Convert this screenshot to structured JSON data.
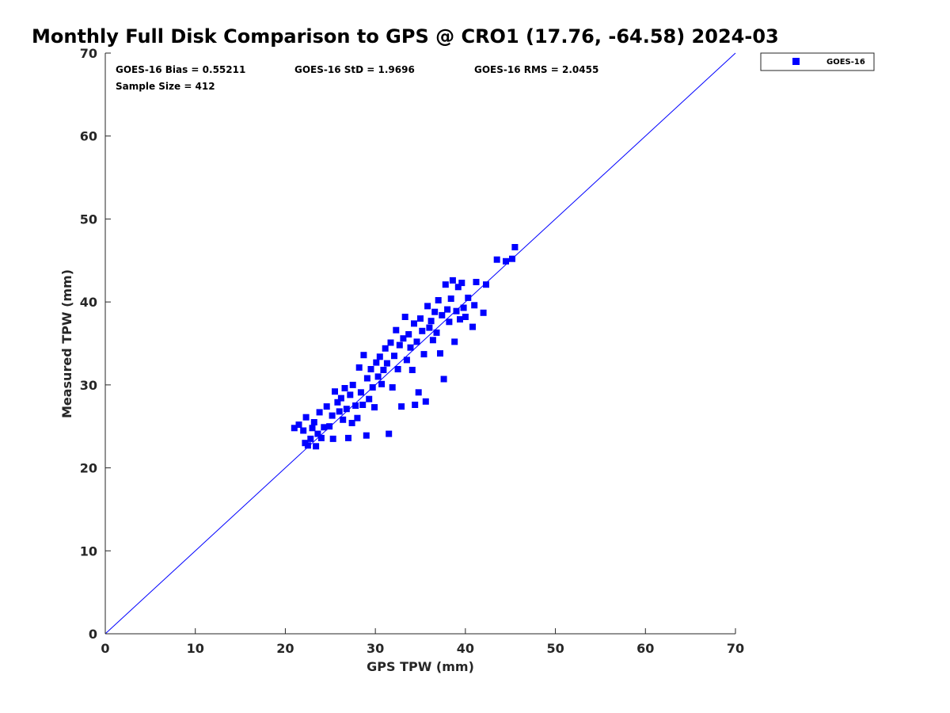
{
  "chart_data": {
    "type": "scatter",
    "title": "Monthly Full Disk Comparison to GPS @ CRO1 (17.76, -64.58) 2024-03",
    "xlabel": "GPS TPW (mm)",
    "ylabel": "Measured TPW (mm)",
    "xlim": [
      0,
      70
    ],
    "ylim": [
      0,
      70
    ],
    "xticks": [
      "0",
      "10",
      "20",
      "30",
      "40",
      "50",
      "60",
      "70"
    ],
    "yticks": [
      "0",
      "10",
      "20",
      "30",
      "40",
      "50",
      "60",
      "70"
    ],
    "grid": false,
    "legend_position": "outside top-right",
    "reference_line": {
      "from": [
        0,
        0
      ],
      "to": [
        70,
        70
      ],
      "color": "#0000ff"
    },
    "stats": {
      "bias": "GOES-16 Bias = 0.55211",
      "std": "GOES-16 StD = 1.9696",
      "rms": "GOES-16 RMS = 2.0455",
      "sample_size": "Sample Size = 412"
    },
    "series": [
      {
        "name": "GOES-16",
        "color": "#0000ff",
        "marker": "square",
        "points": [
          [
            21.0,
            24.8
          ],
          [
            21.5,
            25.2
          ],
          [
            22.0,
            24.5
          ],
          [
            22.2,
            23.0
          ],
          [
            22.3,
            26.1
          ],
          [
            22.5,
            22.7
          ],
          [
            22.8,
            23.5
          ],
          [
            23.0,
            24.8
          ],
          [
            23.2,
            25.5
          ],
          [
            23.4,
            22.6
          ],
          [
            23.6,
            24.1
          ],
          [
            23.8,
            26.7
          ],
          [
            24.0,
            23.6
          ],
          [
            24.3,
            24.9
          ],
          [
            24.6,
            27.4
          ],
          [
            24.9,
            25.0
          ],
          [
            25.2,
            26.3
          ],
          [
            25.3,
            23.5
          ],
          [
            25.5,
            29.2
          ],
          [
            25.8,
            27.9
          ],
          [
            26.0,
            26.8
          ],
          [
            26.2,
            28.4
          ],
          [
            26.4,
            25.8
          ],
          [
            26.6,
            29.6
          ],
          [
            26.8,
            27.1
          ],
          [
            27.0,
            23.6
          ],
          [
            27.2,
            28.8
          ],
          [
            27.4,
            25.4
          ],
          [
            27.5,
            30.0
          ],
          [
            27.8,
            27.5
          ],
          [
            28.0,
            26.0
          ],
          [
            28.2,
            32.1
          ],
          [
            28.4,
            29.1
          ],
          [
            28.6,
            27.6
          ],
          [
            28.7,
            33.6
          ],
          [
            29.0,
            23.9
          ],
          [
            29.1,
            30.8
          ],
          [
            29.3,
            28.3
          ],
          [
            29.5,
            31.9
          ],
          [
            29.7,
            29.7
          ],
          [
            29.9,
            27.3
          ],
          [
            30.1,
            32.7
          ],
          [
            30.3,
            31.0
          ],
          [
            30.5,
            33.4
          ],
          [
            30.7,
            30.1
          ],
          [
            30.9,
            31.8
          ],
          [
            31.1,
            34.4
          ],
          [
            31.3,
            32.6
          ],
          [
            31.5,
            24.1
          ],
          [
            31.7,
            35.1
          ],
          [
            31.9,
            29.7
          ],
          [
            32.1,
            33.5
          ],
          [
            32.3,
            36.6
          ],
          [
            32.5,
            31.9
          ],
          [
            32.7,
            34.8
          ],
          [
            32.9,
            27.4
          ],
          [
            33.1,
            35.6
          ],
          [
            33.3,
            38.2
          ],
          [
            33.5,
            33.0
          ],
          [
            33.7,
            36.1
          ],
          [
            33.9,
            34.5
          ],
          [
            34.1,
            31.8
          ],
          [
            34.3,
            37.4
          ],
          [
            34.4,
            27.6
          ],
          [
            34.6,
            35.2
          ],
          [
            34.8,
            29.1
          ],
          [
            35.0,
            38.0
          ],
          [
            35.2,
            36.5
          ],
          [
            35.4,
            33.7
          ],
          [
            35.6,
            28.0
          ],
          [
            35.8,
            39.5
          ],
          [
            36.0,
            36.9
          ],
          [
            36.2,
            37.7
          ],
          [
            36.4,
            35.4
          ],
          [
            36.6,
            38.8
          ],
          [
            36.8,
            36.3
          ],
          [
            37.0,
            40.2
          ],
          [
            37.2,
            33.8
          ],
          [
            37.4,
            38.4
          ],
          [
            37.6,
            30.7
          ],
          [
            37.8,
            42.1
          ],
          [
            38.0,
            39.1
          ],
          [
            38.2,
            37.6
          ],
          [
            38.4,
            40.4
          ],
          [
            38.6,
            42.6
          ],
          [
            38.8,
            35.2
          ],
          [
            39.0,
            38.9
          ],
          [
            39.2,
            41.8
          ],
          [
            39.4,
            37.9
          ],
          [
            39.6,
            42.3
          ],
          [
            39.8,
            39.3
          ],
          [
            40.0,
            38.2
          ],
          [
            40.3,
            40.5
          ],
          [
            40.8,
            37.0
          ],
          [
            41.0,
            39.6
          ],
          [
            41.2,
            42.4
          ],
          [
            42.0,
            38.7
          ],
          [
            42.3,
            42.1
          ],
          [
            43.5,
            45.1
          ],
          [
            44.5,
            44.9
          ],
          [
            45.2,
            45.2
          ],
          [
            45.5,
            46.6
          ]
        ]
      }
    ]
  }
}
